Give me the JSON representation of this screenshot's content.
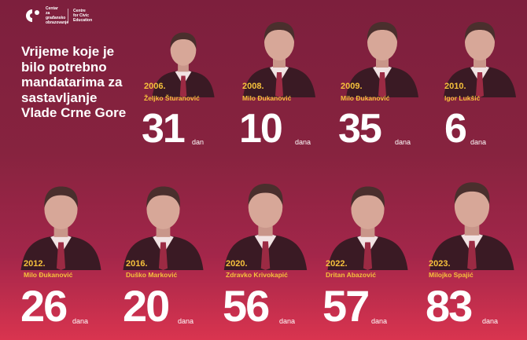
{
  "logo": {
    "text_me": "Centar za građansko obrazovanje",
    "text_en": "Centre for Civic Education"
  },
  "headline": "Vrijeme koje je bilo potrebno mandatarima za sastavljanje Vlade Crne Gore",
  "colors": {
    "background_top": "#7d1f3d",
    "background_bottom": "#d9344f",
    "accent": "#f6c13c",
    "text": "#ffffff"
  },
  "governments": [
    {
      "year": "2006.",
      "name": "Željko Šturanović",
      "days": "31",
      "unit": "dan"
    },
    {
      "year": "2008.",
      "name": "Milo Đukanović",
      "days": "10",
      "unit": "dana"
    },
    {
      "year": "2009.",
      "name": "Milo Đukanović",
      "days": "35",
      "unit": "dana"
    },
    {
      "year": "2010.",
      "name": "Igor Lukšić",
      "days": "6",
      "unit": "dana"
    },
    {
      "year": "2012.",
      "name": "Milo Đukanović",
      "days": "26",
      "unit": "dana"
    },
    {
      "year": "2016.",
      "name": "Duško Marković",
      "days": "20",
      "unit": "dana"
    },
    {
      "year": "2020.",
      "name": "Zdravko Krivokapić",
      "days": "56",
      "unit": "dana"
    },
    {
      "year": "2022.",
      "name": "Dritan Abazović",
      "days": "57",
      "unit": "dana"
    },
    {
      "year": "2023.",
      "name": "Milojko Spajić",
      "days": "83",
      "unit": "dana"
    }
  ]
}
